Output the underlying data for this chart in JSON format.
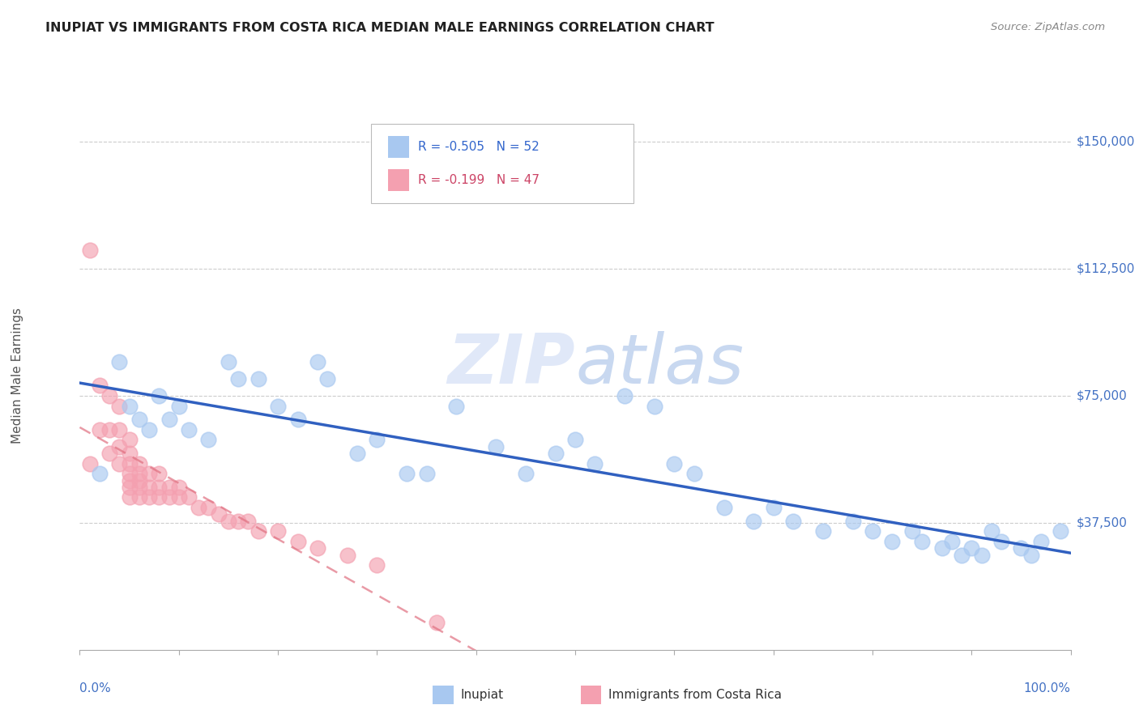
{
  "title": "INUPIAT VS IMMIGRANTS FROM COSTA RICA MEDIAN MALE EARNINGS CORRELATION CHART",
  "source": "Source: ZipAtlas.com",
  "ylabel": "Median Male Earnings",
  "legend1_r": "-0.505",
  "legend1_n": "52",
  "legend2_r": "-0.199",
  "legend2_n": "47",
  "blue_color": "#a8c8f0",
  "pink_color": "#f4a0b0",
  "trendline_blue": "#3060c0",
  "trendline_pink": "#e07080",
  "blue_x": [
    2,
    4,
    5,
    6,
    7,
    8,
    9,
    10,
    11,
    13,
    15,
    16,
    18,
    20,
    22,
    24,
    25,
    28,
    30,
    33,
    35,
    38,
    42,
    45,
    48,
    50,
    52,
    55,
    58,
    60,
    62,
    65,
    68,
    70,
    72,
    75,
    78,
    80,
    82,
    84,
    85,
    87,
    88,
    89,
    90,
    91,
    92,
    93,
    95,
    96,
    97,
    99
  ],
  "blue_y": [
    52000,
    85000,
    72000,
    68000,
    65000,
    75000,
    68000,
    72000,
    65000,
    62000,
    85000,
    80000,
    80000,
    72000,
    68000,
    85000,
    80000,
    58000,
    62000,
    52000,
    52000,
    72000,
    60000,
    52000,
    58000,
    62000,
    55000,
    75000,
    72000,
    55000,
    52000,
    42000,
    38000,
    42000,
    38000,
    35000,
    38000,
    35000,
    32000,
    35000,
    32000,
    30000,
    32000,
    28000,
    30000,
    28000,
    35000,
    32000,
    30000,
    28000,
    32000,
    35000
  ],
  "pink_x": [
    1,
    1,
    2,
    2,
    3,
    3,
    3,
    4,
    4,
    4,
    4,
    5,
    5,
    5,
    5,
    5,
    5,
    5,
    6,
    6,
    6,
    6,
    6,
    7,
    7,
    7,
    8,
    8,
    8,
    9,
    9,
    10,
    10,
    11,
    12,
    13,
    14,
    15,
    16,
    17,
    18,
    20,
    22,
    24,
    27,
    30,
    36
  ],
  "pink_y": [
    118000,
    55000,
    78000,
    65000,
    75000,
    65000,
    58000,
    72000,
    65000,
    60000,
    55000,
    62000,
    58000,
    55000,
    52000,
    50000,
    48000,
    45000,
    55000,
    52000,
    50000,
    48000,
    45000,
    52000,
    48000,
    45000,
    52000,
    48000,
    45000,
    48000,
    45000,
    48000,
    45000,
    45000,
    42000,
    42000,
    40000,
    38000,
    38000,
    38000,
    35000,
    35000,
    32000,
    30000,
    28000,
    25000,
    8000
  ]
}
